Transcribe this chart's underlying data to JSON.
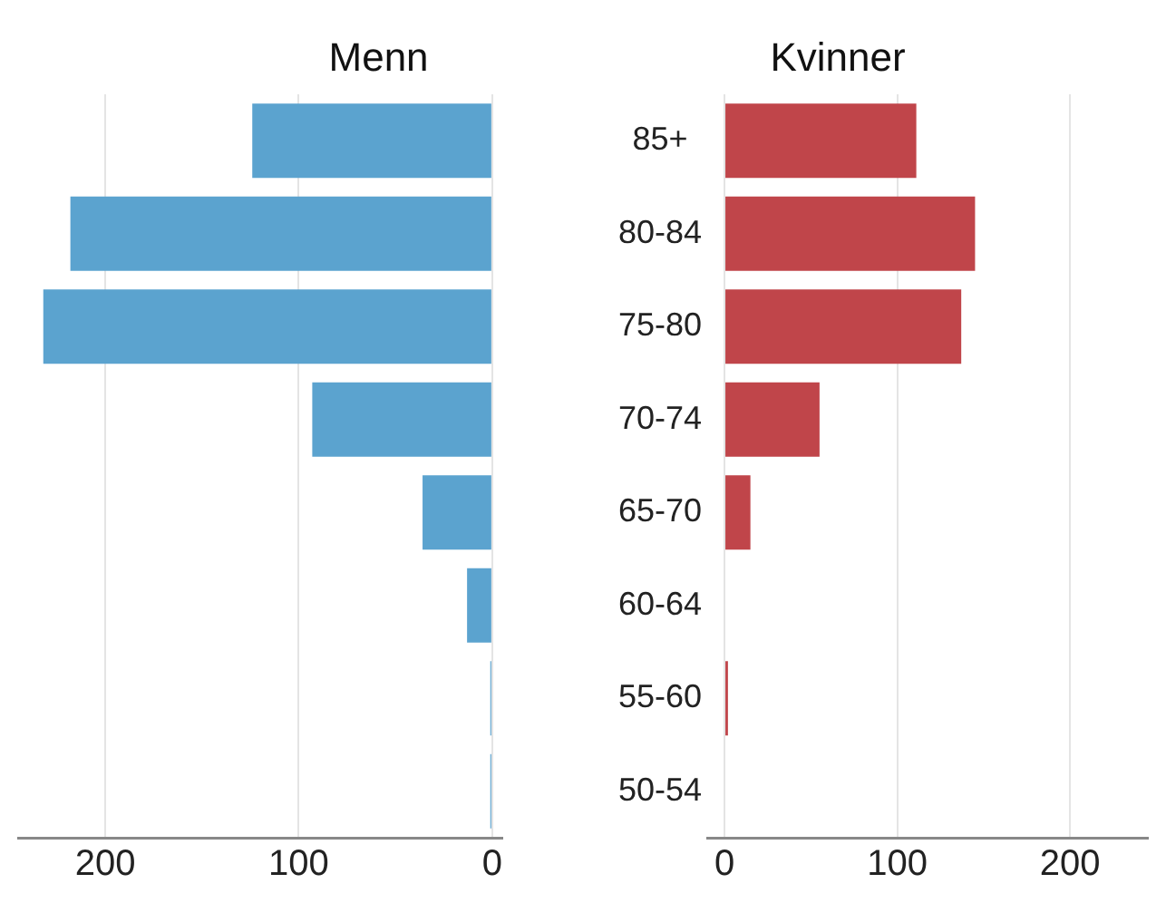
{
  "chart_data": [
    {
      "type": "bar",
      "orientation": "horizontal",
      "title": "Menn",
      "categories": [
        null,
        null,
        null,
        null,
        null,
        null,
        null,
        null
      ],
      "values": [
        124,
        218,
        232,
        93,
        36,
        13,
        1,
        1
      ],
      "color": "#5ba3cf",
      "xlim": [
        245,
        -5
      ],
      "xticks": [
        200,
        100,
        0
      ],
      "grid": "x",
      "tick_labels": "x"
    },
    {
      "type": "bar",
      "orientation": "horizontal",
      "title": "Kvinner",
      "categories": [
        "85+",
        "80-84",
        "75-80",
        "70-74",
        "65-70",
        "60-64",
        "55-60",
        "50-54"
      ],
      "values": [
        111,
        145,
        137,
        55,
        15,
        0,
        2,
        0
      ],
      "color": "#c0454a",
      "xlim": [
        -10,
        245
      ],
      "xticks": [
        0,
        100,
        200
      ],
      "grid": "x"
    }
  ]
}
